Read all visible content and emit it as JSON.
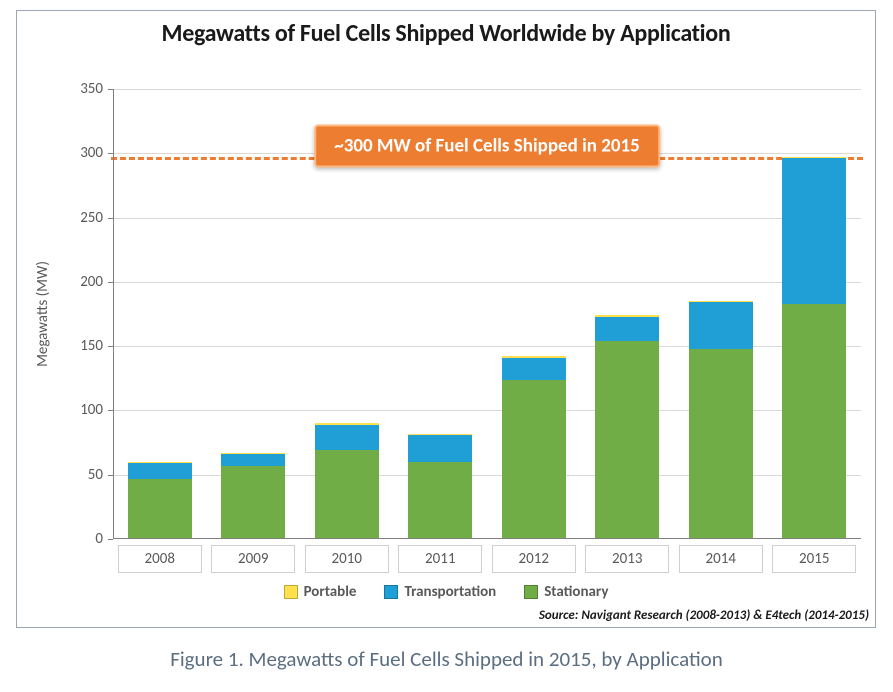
{
  "chart": {
    "type": "stacked-bar",
    "title": "Megawatts of Fuel Cells Shipped Worldwide by Application",
    "title_fontsize": 24,
    "title_color": "#1a1a1a",
    "background_color": "#ffffff",
    "border_color": "#9aa6b2",
    "ylabel": "Megawatts (MW)",
    "label_fontsize": 15,
    "tick_fontsize": 15,
    "tick_color": "#595959",
    "ylim": [
      0,
      350
    ],
    "ytick_step": 50,
    "yticks": [
      0,
      50,
      100,
      150,
      200,
      250,
      300,
      350
    ],
    "grid_color": "#d9d9d9",
    "axis_color": "#808080",
    "bar_width": 0.68,
    "categories": [
      "2008",
      "2009",
      "2010",
      "2011",
      "2012",
      "2013",
      "2014",
      "2015"
    ],
    "series": [
      {
        "name": "Portable",
        "color": "#ffe14d",
        "values": [
          1,
          1,
          1,
          1,
          1,
          1,
          1,
          1
        ]
      },
      {
        "name": "Transportation",
        "color": "#1f9fd6",
        "values": [
          12,
          9,
          20,
          21,
          17,
          19,
          36,
          113
        ]
      },
      {
        "name": "Stationary",
        "color": "#70ad47",
        "values": [
          47,
          57,
          69,
          60,
          124,
          154,
          148,
          183
        ]
      }
    ],
    "reference_line": {
      "value": 297,
      "color": "#ed7d31",
      "dash": "5 6",
      "width": 3
    },
    "annotation": {
      "text": "~300 MW of Fuel Cells Shipped in 2015",
      "y_value": 306,
      "bg_color": "#ed7d31",
      "border_color": "#ffb780",
      "text_color": "#ffffff",
      "fontsize": 19
    },
    "source_note": "Source: Navigant Research (2008-2013) & E4tech (2014-2015)"
  },
  "caption": {
    "text": "Figure 1.  Megawatts of Fuel Cells Shipped in 2015, by Application",
    "fontsize": 21,
    "color": "#5b6e80"
  }
}
